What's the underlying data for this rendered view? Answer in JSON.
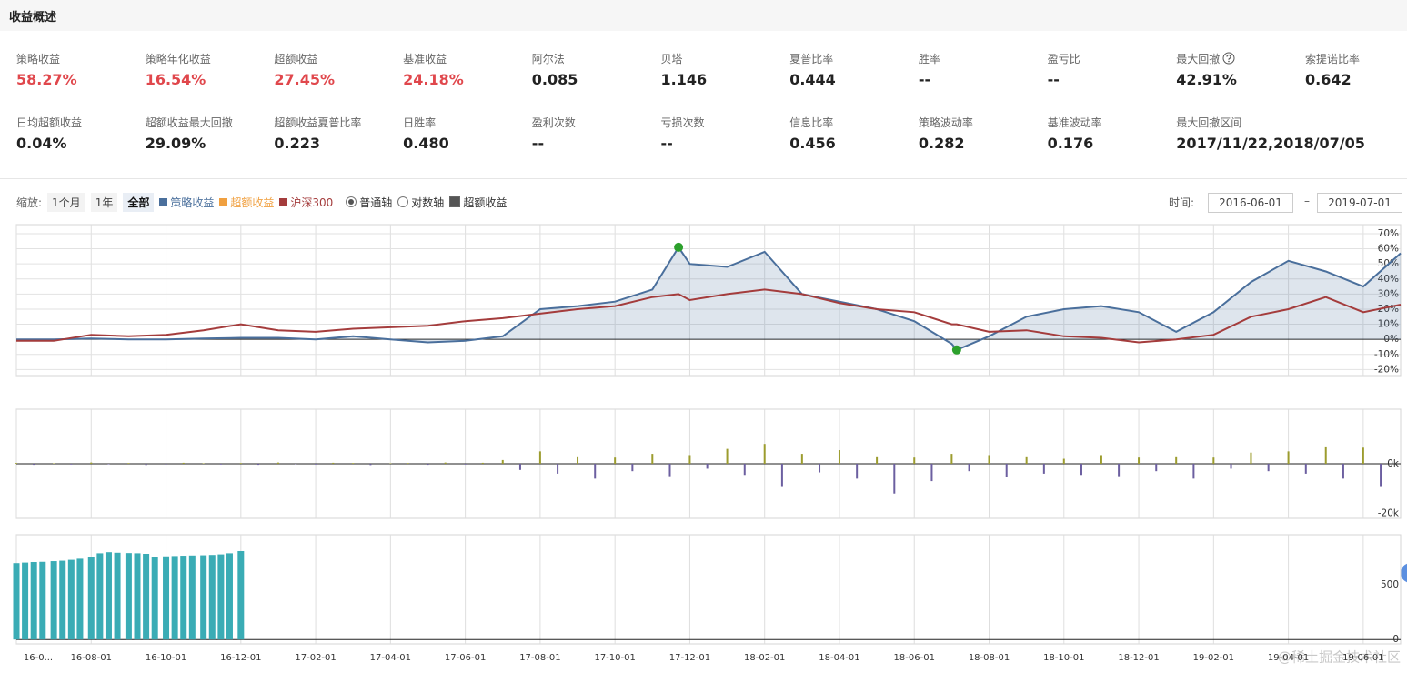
{
  "header": {
    "title": "收益概述"
  },
  "metrics": [
    [
      {
        "label": "策略收益",
        "value": "58.27%",
        "highlight": true
      },
      {
        "label": "策略年化收益",
        "value": "16.54%",
        "highlight": true
      },
      {
        "label": "超额收益",
        "value": "27.45%",
        "highlight": true
      },
      {
        "label": "基准收益",
        "value": "24.18%",
        "highlight": true
      },
      {
        "label": "阿尔法",
        "value": "0.085"
      },
      {
        "label": "贝塔",
        "value": "1.146"
      },
      {
        "label": "夏普比率",
        "value": "0.444"
      },
      {
        "label": "胜率",
        "value": "--"
      },
      {
        "label": "盈亏比",
        "value": "--"
      },
      {
        "label": "最大回撤",
        "value": "42.91%",
        "help": true
      },
      {
        "label": "索提诺比率",
        "value": "0.642"
      }
    ],
    [
      {
        "label": "日均超额收益",
        "value": "0.04%"
      },
      {
        "label": "超额收益最大回撤",
        "value": "29.09%"
      },
      {
        "label": "超额收益夏普比率",
        "value": "0.223"
      },
      {
        "label": "日胜率",
        "value": "0.480"
      },
      {
        "label": "盈利次数",
        "value": "--"
      },
      {
        "label": "亏损次数",
        "value": "--"
      },
      {
        "label": "信息比率",
        "value": "0.456"
      },
      {
        "label": "策略波动率",
        "value": "0.282"
      },
      {
        "label": "基准波动率",
        "value": "0.176"
      },
      {
        "label": "最大回撤区间",
        "value": "2017/11/22,2018/07/05"
      }
    ]
  ],
  "toolbar": {
    "zoom_label": "缩放:",
    "zoom_options": [
      "1个月",
      "1年",
      "全部"
    ],
    "zoom_selected": 2,
    "excess_legend": {
      "name": "超额收益",
      "color": "#f0a040"
    },
    "axis_options": [
      "普通轴",
      "对数轴"
    ],
    "axis_selected": 0,
    "checkbox": {
      "label": "超额收益",
      "checked": true
    },
    "time_label": "时间:",
    "start": "2016-06-01",
    "separator": "–",
    "end": "2019-07-01"
  },
  "watermark": "@稀土掘金技术社区",
  "chart_data": [
    {
      "type": "line",
      "xlim": [
        "16-06-01",
        "19-07-01"
      ],
      "ylim": [
        -24,
        76
      ],
      "yticks": [
        {
          "value": 70,
          "label": "70%"
        },
        {
          "value": 60,
          "label": "60%"
        },
        {
          "value": 50,
          "label": "50%"
        },
        {
          "value": 40,
          "label": "40%"
        },
        {
          "value": 30,
          "label": "30%"
        },
        {
          "value": 20,
          "label": "20%"
        },
        {
          "value": 10,
          "label": "10%"
        },
        {
          "value": 0,
          "label": "0%"
        },
        {
          "value": -10,
          "label": "-10%"
        },
        {
          "value": -20,
          "label": "-20%"
        }
      ],
      "grid": true,
      "x": [
        "16-06-01",
        "16-07-01",
        "16-08-01",
        "16-09-01",
        "16-10-01",
        "16-11-01",
        "16-12-01",
        "17-01-01",
        "17-02-01",
        "17-03-01",
        "17-04-01",
        "17-05-01",
        "17-06-01",
        "17-07-01",
        "17-08-01",
        "17-09-01",
        "17-10-01",
        "17-11-01",
        "17-11-22",
        "17-12-01",
        "18-01-01",
        "18-02-01",
        "18-03-01",
        "18-04-01",
        "18-05-01",
        "18-06-01",
        "18-07-01",
        "18-07-05",
        "18-08-01",
        "18-09-01",
        "18-10-01",
        "18-11-01",
        "18-12-01",
        "19-01-01",
        "19-02-01",
        "19-03-01",
        "19-04-01",
        "19-05-01",
        "19-06-01",
        "19-07-01"
      ],
      "series": [
        {
          "name": "策略收益",
          "color": "#4a6f9c",
          "area": true,
          "values": [
            0,
            0,
            0.5,
            0,
            0,
            0.5,
            1,
            1,
            0,
            2,
            0,
            -2,
            -1,
            2,
            20,
            22,
            25,
            33,
            61,
            50,
            48,
            58,
            30,
            25,
            20,
            12,
            -3,
            -7,
            2,
            15,
            20,
            22,
            18,
            5,
            18,
            38,
            52,
            45,
            35,
            57
          ]
        },
        {
          "name": "沪深300",
          "color": "#a43c3c",
          "values": [
            -1,
            -1,
            3,
            2,
            3,
            6,
            10,
            6,
            5,
            7,
            8,
            9,
            12,
            14,
            17,
            20,
            22,
            28,
            30,
            26,
            30,
            33,
            30,
            24,
            20,
            18,
            10,
            10,
            5,
            6,
            2,
            1,
            -2,
            0,
            3,
            15,
            20,
            28,
            18,
            23
          ]
        }
      ],
      "markers": {
        "x": [
          "17-11-22",
          "18-07-05"
        ],
        "color": "#2ca02c"
      }
    },
    {
      "type": "bar",
      "xlim": [
        "16-06-01",
        "19-07-01"
      ],
      "ylim": [
        -22000,
        22000
      ],
      "yticks": [
        {
          "value": 0,
          "label": "0k"
        },
        {
          "value": -20000,
          "label": "-20k"
        }
      ],
      "up_color": "#9c9c2e",
      "down_color": "#6c5fa0",
      "x": [
        "16-06-01",
        "16-06-15",
        "16-07-01",
        "16-07-15",
        "16-08-01",
        "16-08-15",
        "16-09-01",
        "16-09-15",
        "16-10-01",
        "16-10-15",
        "16-11-01",
        "16-11-15",
        "16-12-01",
        "16-12-15",
        "17-01-01",
        "17-01-15",
        "17-02-01",
        "17-02-15",
        "17-03-01",
        "17-03-15",
        "17-04-01",
        "17-04-15",
        "17-05-01",
        "17-05-15",
        "17-06-01",
        "17-06-15",
        "17-07-01",
        "17-07-15",
        "17-08-01",
        "17-08-15",
        "17-09-01",
        "17-09-15",
        "17-10-01",
        "17-10-15",
        "17-11-01",
        "17-11-15",
        "17-12-01",
        "17-12-15",
        "18-01-01",
        "18-01-15",
        "18-02-01",
        "18-02-15",
        "18-03-01",
        "18-03-15",
        "18-04-01",
        "18-04-15",
        "18-05-01",
        "18-05-15",
        "18-06-01",
        "18-06-15",
        "18-07-01",
        "18-07-15",
        "18-08-01",
        "18-08-15",
        "18-09-01",
        "18-09-15",
        "18-10-01",
        "18-10-15",
        "18-11-01",
        "18-11-15",
        "18-12-01",
        "18-12-15",
        "19-01-01",
        "19-01-15",
        "19-02-01",
        "19-02-15",
        "19-03-01",
        "19-03-15",
        "19-04-01",
        "19-04-15",
        "19-05-01",
        "19-05-15",
        "19-06-01",
        "19-06-15"
      ],
      "values": [
        300,
        -400,
        200,
        -300,
        500,
        -200,
        300,
        -500,
        -300,
        400,
        200,
        -300,
        300,
        -400,
        500,
        -200,
        -300,
        400,
        300,
        -500,
        200,
        300,
        -400,
        500,
        -300,
        400,
        1500,
        -2500,
        5000,
        -4000,
        3000,
        -6000,
        2500,
        -3000,
        4000,
        -5000,
        3500,
        -2000,
        6000,
        -4500,
        8000,
        -9000,
        4000,
        -3500,
        5500,
        -6000,
        3000,
        -12000,
        2500,
        -7000,
        4000,
        -3000,
        3500,
        -5500,
        3000,
        -4000,
        2000,
        -4500,
        3500,
        -5000,
        2500,
        -3000,
        3000,
        -6000,
        2500,
        -2000,
        4500,
        -3000,
        5000,
        -4000,
        7000,
        -6000,
        6500,
        -9000
      ]
    },
    {
      "type": "bar",
      "xlim": [
        "16-06-01",
        "19-07-01"
      ],
      "ylim": [
        -40,
        960
      ],
      "yticks": [
        500,
        0
      ],
      "color": "#3aacb5",
      "xticks": [
        {
          "value": "16-06-01",
          "label": "16-0..."
        },
        "16-08-01",
        "16-10-01",
        "16-12-01",
        "17-02-01",
        "17-04-01",
        "17-06-01",
        "17-08-01",
        "17-10-01",
        "17-12-01",
        "18-02-01",
        "18-04-01",
        "18-06-01",
        "18-08-01",
        "18-10-01",
        "18-12-01",
        "19-02-01",
        "19-04-01",
        "19-06-01"
      ],
      "x": [
        "16-06-01",
        "16-06-08",
        "16-06-15",
        "16-06-22",
        "16-07-01",
        "16-07-08",
        "16-07-15",
        "16-07-22",
        "16-08-01",
        "16-08-08",
        "16-08-15",
        "16-08-22",
        "16-09-01",
        "16-09-08",
        "16-09-15",
        "16-09-22",
        "16-10-01",
        "16-10-08",
        "16-10-15",
        "16-10-22",
        "16-11-01",
        "16-11-08",
        "16-11-15",
        "16-11-22",
        "16-12-01"
      ],
      "values": [
        700,
        705,
        710,
        712,
        718,
        722,
        730,
        740,
        760,
        790,
        800,
        795,
        792,
        790,
        785,
        760,
        762,
        765,
        768,
        770,
        772,
        775,
        780,
        790,
        810
      ]
    }
  ]
}
